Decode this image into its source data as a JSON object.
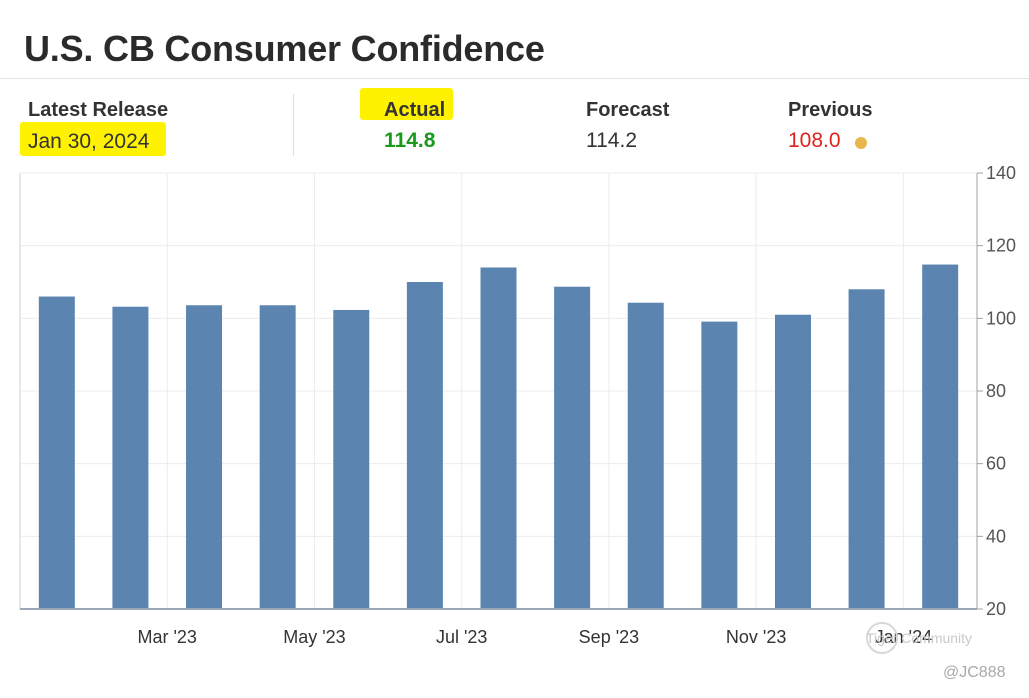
{
  "title": "U.S. CB Consumer Confidence",
  "stats": {
    "latest_release": {
      "label": "Latest Release",
      "value": "Jan 30, 2024"
    },
    "actual": {
      "label": "Actual",
      "value": "114.8",
      "color": "#1a9a1a"
    },
    "forecast": {
      "label": "Forecast",
      "value": "114.2"
    },
    "previous": {
      "label": "Previous",
      "value": "108.0",
      "color": "#e0211d",
      "dot_color": "#e9b64c"
    }
  },
  "highlight_color": "#fff200",
  "watermark": {
    "brand": "Tiger Community",
    "user": "@JC888"
  },
  "chart_data": {
    "type": "bar",
    "bar_color": "#5b84b1",
    "values": [
      106,
      103.2,
      103.6,
      103.6,
      102.3,
      110,
      114,
      108.7,
      104.3,
      99.1,
      101,
      108,
      114.8
    ],
    "x_tick_labels": [
      {
        "label": "Mar '23",
        "after_bar": 1
      },
      {
        "label": "May '23",
        "after_bar": 3
      },
      {
        "label": "Jul '23",
        "after_bar": 5
      },
      {
        "label": "Sep '23",
        "after_bar": 7
      },
      {
        "label": "Nov '23",
        "after_bar": 9
      },
      {
        "label": "Jan '24",
        "after_bar": 11
      }
    ],
    "y_ticks": [
      20,
      40,
      60,
      80,
      100,
      120,
      140
    ],
    "ylim": [
      20,
      140
    ],
    "y_axis_side": "right",
    "grid": true
  }
}
